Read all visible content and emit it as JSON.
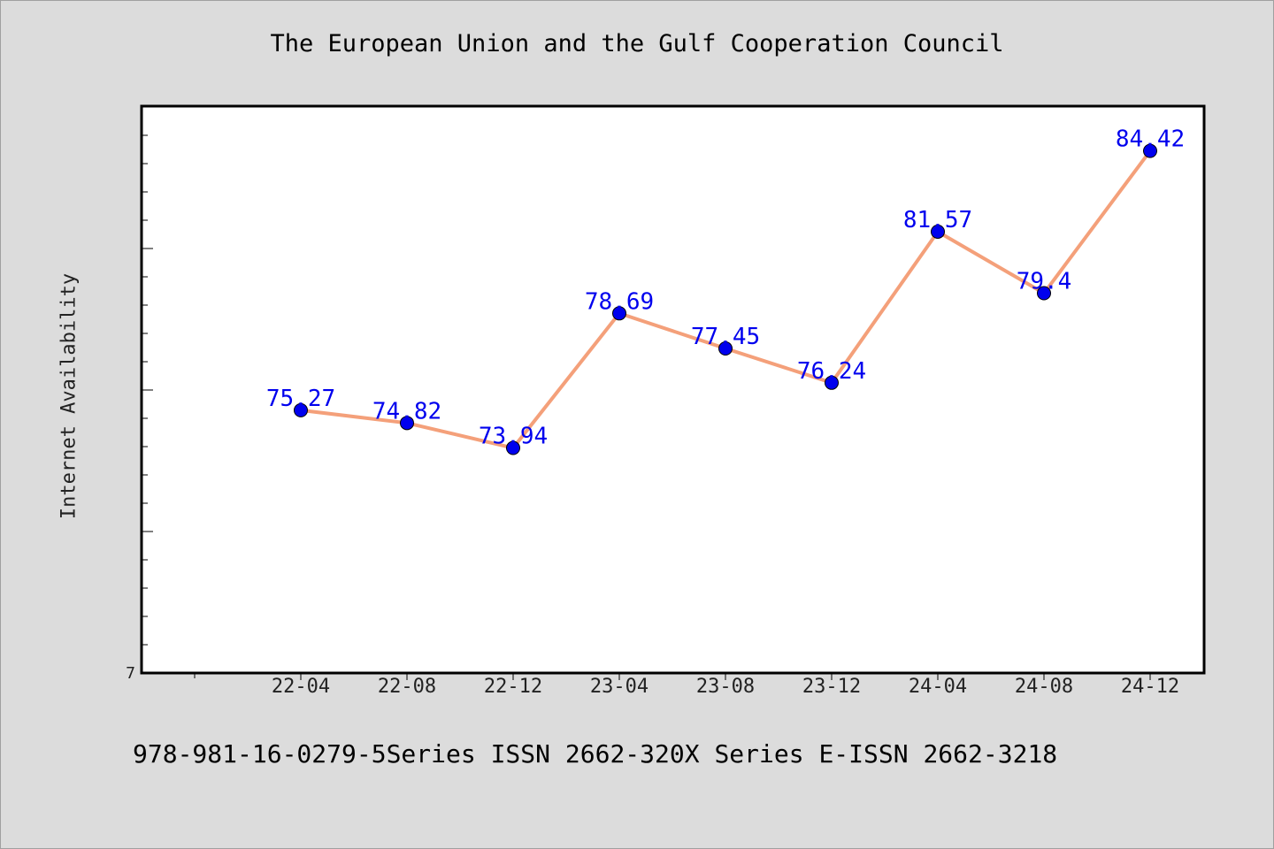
{
  "chart_data": {
    "type": "line",
    "title": "The European Union and the Gulf Cooperation Council",
    "ylabel": "Internet Availability",
    "xlabel": "",
    "categories": [
      "22-04",
      "22-08",
      "22-12",
      "23-04",
      "23-08",
      "23-12",
      "24-04",
      "24-08",
      "24-12"
    ],
    "series": [
      {
        "values": [
          75.27,
          74.82,
          73.94,
          78.69,
          77.45,
          76.24,
          81.57,
          79.4,
          84.42
        ],
        "line_color": "#f4a07a",
        "marker_color": "#0000ee",
        "label_color": "#0000ee"
      }
    ],
    "data_labels": [
      "75.27",
      "74.82",
      "73.94",
      "78.69",
      "77.45",
      "76.24",
      "81.57",
      "79.4",
      "84.42"
    ],
    "y_tick_labels": [
      "7"
    ],
    "ylim": [
      66.0,
      86.0
    ],
    "grid": false,
    "legend": "none"
  },
  "footer": "978-981-16-0279-5Series ISSN 2662-320X Series E-ISSN 2662-3218",
  "colors": {
    "background": "#dcdcdc",
    "plot_background": "#ffffff",
    "axis": "#000000"
  }
}
